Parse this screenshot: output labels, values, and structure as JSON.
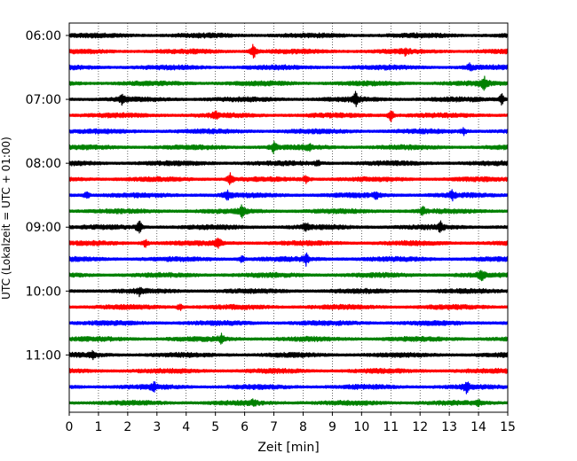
{
  "chart_data": {
    "type": "line",
    "title": "",
    "xlabel": "Zeit  [min]",
    "ylabel": "UTC (Lokalzeit = UTC + 01:00)",
    "xlim": [
      0,
      15
    ],
    "x_ticks": [
      0,
      1,
      2,
      3,
      4,
      5,
      6,
      7,
      8,
      9,
      10,
      11,
      12,
      13,
      14,
      15
    ],
    "x_tick_labels": [
      "0",
      "1",
      "2",
      "3",
      "4",
      "5",
      "6",
      "7",
      "8",
      "9",
      "10",
      "11",
      "12",
      "13",
      "14",
      "15"
    ],
    "y_ticks": [
      "06:00",
      "07:00",
      "08:00",
      "09:00",
      "10:00",
      "11:00"
    ],
    "grid": "vertical dotted",
    "line_start_times": [
      "06:00",
      "06:15",
      "06:30",
      "06:45",
      "07:00",
      "07:15",
      "07:30",
      "07:45",
      "08:00",
      "08:15",
      "08:30",
      "08:45",
      "09:00",
      "09:15",
      "09:30",
      "09:45",
      "10:00",
      "10:15",
      "10:30",
      "10:45",
      "11:00",
      "11:15",
      "11:30",
      "11:45"
    ],
    "trace_colors": [
      "#000000",
      "#ff0000",
      "#0000ff",
      "#008000"
    ],
    "events": [
      {
        "line": 1,
        "x": 6.3,
        "amp": 1.0
      },
      {
        "line": 1,
        "x": 11.5,
        "amp": 0.4
      },
      {
        "line": 2,
        "x": 13.7,
        "amp": 0.4
      },
      {
        "line": 3,
        "x": 14.2,
        "amp": 0.8
      },
      {
        "line": 4,
        "x": 1.8,
        "amp": 0.5
      },
      {
        "line": 4,
        "x": 9.8,
        "amp": 0.8
      },
      {
        "line": 4,
        "x": 14.8,
        "amp": 0.7
      },
      {
        "line": 5,
        "x": 5.0,
        "amp": 0.4
      },
      {
        "line": 5,
        "x": 11.0,
        "amp": 0.9
      },
      {
        "line": 6,
        "x": 13.5,
        "amp": 0.4
      },
      {
        "line": 7,
        "x": 7.0,
        "amp": 0.7
      },
      {
        "line": 7,
        "x": 8.2,
        "amp": 0.4
      },
      {
        "line": 8,
        "x": 8.5,
        "amp": 0.4
      },
      {
        "line": 9,
        "x": 5.5,
        "amp": 1.0
      },
      {
        "line": 9,
        "x": 8.1,
        "amp": 0.5
      },
      {
        "line": 10,
        "x": 0.6,
        "amp": 0.5
      },
      {
        "line": 10,
        "x": 5.4,
        "amp": 0.6
      },
      {
        "line": 10,
        "x": 10.5,
        "amp": 0.4
      },
      {
        "line": 10,
        "x": 13.1,
        "amp": 0.5
      },
      {
        "line": 11,
        "x": 5.9,
        "amp": 0.7
      },
      {
        "line": 11,
        "x": 12.1,
        "amp": 0.5
      },
      {
        "line": 12,
        "x": 2.4,
        "amp": 0.8
      },
      {
        "line": 12,
        "x": 8.1,
        "amp": 0.5
      },
      {
        "line": 12,
        "x": 12.7,
        "amp": 0.6
      },
      {
        "line": 13,
        "x": 2.6,
        "amp": 0.5
      },
      {
        "line": 13,
        "x": 5.1,
        "amp": 0.6
      },
      {
        "line": 14,
        "x": 5.9,
        "amp": 0.5
      },
      {
        "line": 14,
        "x": 8.1,
        "amp": 0.7
      },
      {
        "line": 15,
        "x": 14.1,
        "amp": 0.7
      },
      {
        "line": 16,
        "x": 2.4,
        "amp": 0.4
      },
      {
        "line": 17,
        "x": 3.8,
        "amp": 0.5
      },
      {
        "line": 19,
        "x": 5.2,
        "amp": 0.5
      },
      {
        "line": 20,
        "x": 0.8,
        "amp": 0.4
      },
      {
        "line": 22,
        "x": 2.9,
        "amp": 0.5
      },
      {
        "line": 22,
        "x": 13.6,
        "amp": 0.7
      },
      {
        "line": 23,
        "x": 6.3,
        "amp": 0.3
      },
      {
        "line": 23,
        "x": 14.0,
        "amp": 0.3
      }
    ]
  }
}
